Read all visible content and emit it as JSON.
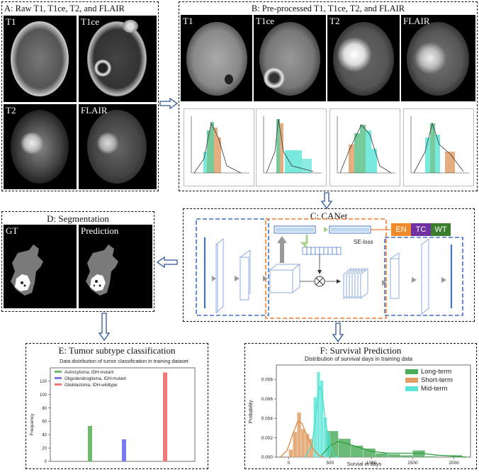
{
  "panels": {
    "a": {
      "title": "A: Raw T1, T1ce, T2, and FLAIR",
      "labels": [
        "T1",
        "T1ce",
        "T2",
        "FLAIR"
      ]
    },
    "b": {
      "title": "B: Pre-processed T1, T1ce, T2, and FLAIR",
      "labels": [
        "T1",
        "T1ce",
        "T2",
        "FLAIR"
      ]
    },
    "c": {
      "title": "C: CANet",
      "se_loss": "SE-loss",
      "tags": [
        "EN",
        "TC",
        "WT"
      ],
      "tag_colors": [
        "#f08a2a",
        "#7030a0",
        "#3a7d2c"
      ]
    },
    "d": {
      "title": "D: Segmentation",
      "labels": [
        "GT",
        "Prediction"
      ]
    },
    "e": {
      "title": "E: Tumor subtype classification"
    },
    "f": {
      "title": "F: Survival Prediction"
    }
  },
  "chart_data": [
    {
      "type": "bar",
      "title": "Data distribution of tumor classification in training dataset",
      "ylabel": "Frequency",
      "categories": [
        "Astrocytoma, IDH-mutant",
        "Oligodendroglioma, IDH-mutant",
        "Glioblastoma, IDH-wildtype"
      ],
      "values": [
        53,
        33,
        133
      ],
      "colors": [
        "#6dbb6d",
        "#7b7bf0",
        "#f07a7a"
      ],
      "ylim": [
        0,
        140
      ],
      "yticks": [
        0,
        20,
        40,
        60,
        80,
        100,
        120
      ],
      "legend": "top-left"
    },
    {
      "type": "histogram",
      "title": "Distribution of survival days in training data",
      "xlabel": "Survial in days",
      "ylabel": "Probability",
      "xlim": [
        -150,
        2200
      ],
      "ylim": [
        0,
        0.0095
      ],
      "xticks": [
        0,
        500,
        1000,
        1500,
        2000
      ],
      "yticks": [
        0.0,
        0.002,
        0.004,
        0.006,
        0.008
      ],
      "legend": "top-right",
      "series": [
        {
          "name": "Long-term",
          "color": "#2e9e3e",
          "bins": [
            [
              450,
              600,
              0.0027
            ],
            [
              600,
              750,
              0.0019
            ],
            [
              750,
              900,
              0.0012
            ],
            [
              900,
              1050,
              0.0009
            ],
            [
              1050,
              1200,
              0.0004
            ],
            [
              1200,
              1350,
              0.0003
            ],
            [
              1350,
              1500,
              0.0002
            ],
            [
              1500,
              1650,
              0.0007
            ],
            [
              1650,
              1800,
              0.0001
            ],
            [
              1950,
              2100,
              0.0002
            ]
          ],
          "curve": [
            [
              400,
              0.0002
            ],
            [
              500,
              0.0012
            ],
            [
              600,
              0.0016
            ],
            [
              700,
              0.0014
            ],
            [
              850,
              0.001
            ],
            [
              1000,
              0.0006
            ],
            [
              1200,
              0.0004
            ],
            [
              1400,
              0.0004
            ],
            [
              1600,
              0.0004
            ],
            [
              1800,
              0.0002
            ],
            [
              2000,
              0.0001
            ],
            [
              2150,
              0.0
            ]
          ]
        },
        {
          "name": "Short-term",
          "color": "#d98c4a",
          "bins": [
            [
              0,
              50,
              0.0008
            ],
            [
              50,
              100,
              0.0026
            ],
            [
              100,
              150,
              0.0046
            ],
            [
              150,
              200,
              0.0029
            ],
            [
              200,
              250,
              0.0024
            ],
            [
              250,
              300,
              0.0019
            ]
          ],
          "curve": [
            [
              -100,
              0.0
            ],
            [
              -20,
              0.0007
            ],
            [
              50,
              0.0024
            ],
            [
              110,
              0.0037
            ],
            [
              160,
              0.0035
            ],
            [
              220,
              0.0022
            ],
            [
              290,
              0.0009
            ],
            [
              360,
              0.0002
            ],
            [
              420,
              0.0
            ]
          ]
        },
        {
          "name": "Mid-term",
          "color": "#40e0d0",
          "bins": [
            [
              300,
              340,
              0.0062
            ],
            [
              340,
              380,
              0.0088
            ],
            [
              380,
              420,
              0.0079
            ],
            [
              420,
              460,
              0.0041
            ],
            [
              460,
              500,
              0.0025
            ]
          ],
          "curve": [
            [
              200,
              0.0
            ],
            [
              280,
              0.0012
            ],
            [
              330,
              0.0045
            ],
            [
              370,
              0.0073
            ],
            [
              400,
              0.0069
            ],
            [
              440,
              0.004
            ],
            [
              490,
              0.0014
            ],
            [
              550,
              0.0001
            ],
            [
              600,
              0.0
            ]
          ]
        }
      ]
    }
  ]
}
